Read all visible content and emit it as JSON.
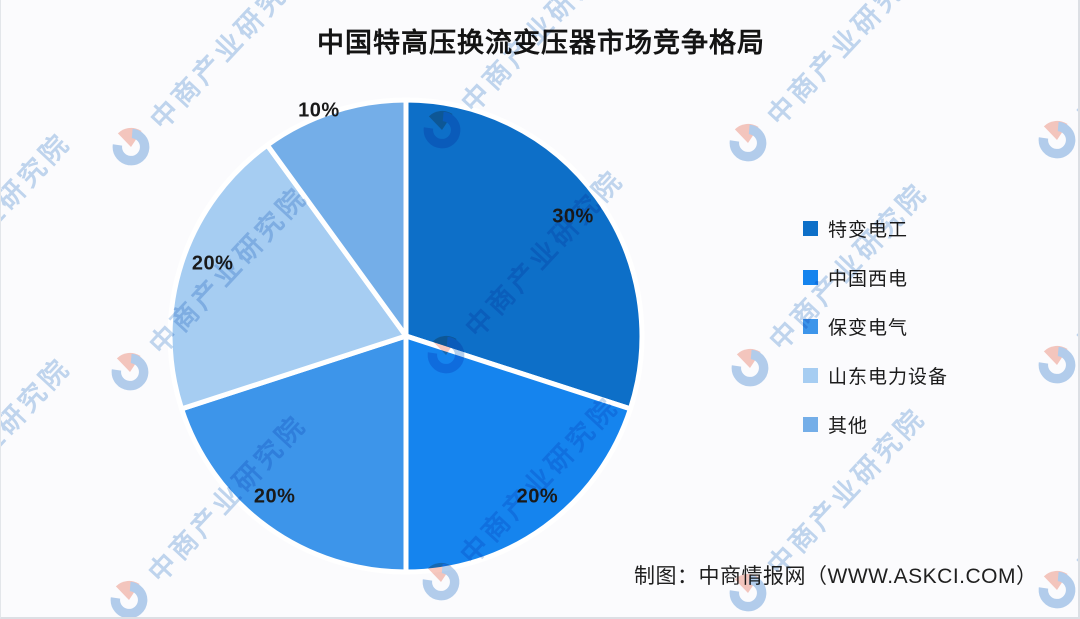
{
  "title": "中国特高压换流变压器市场竞争格局",
  "credit": "制图：中商情报网（WWW.ASKCI.COM）",
  "watermark": {
    "text": "中商产业研究院",
    "text_color": "#b7d1ec",
    "logo_blue": "#a8c8ea",
    "logo_pink": "#f6beb4"
  },
  "chart_data": {
    "type": "pie",
    "title": "中国特高压换流变压器市场竞争格局",
    "categories": [
      "特变电工",
      "中国西电",
      "保变电气",
      "山东电力设备",
      "其他"
    ],
    "values": [
      30,
      20,
      20,
      20,
      10
    ],
    "slice_labels": [
      "30%",
      "20%",
      "20%",
      "20%",
      "10%"
    ],
    "colors": [
      "#0d6fc8",
      "#1584ee",
      "#3d95ea",
      "#a6cdf2",
      "#74aee8"
    ],
    "start_angle_deg": 0,
    "direction": "clockwise",
    "legend_position": "right",
    "separator_color": "#ffffff"
  },
  "legend": {
    "items": [
      {
        "label": "特变电工",
        "color": "#0d6fc8"
      },
      {
        "label": "中国西电",
        "color": "#1584ee"
      },
      {
        "label": "保变电气",
        "color": "#3d95ea"
      },
      {
        "label": "山东电力设备",
        "color": "#a6cdf2"
      },
      {
        "label": "其他",
        "color": "#74aee8"
      }
    ]
  }
}
